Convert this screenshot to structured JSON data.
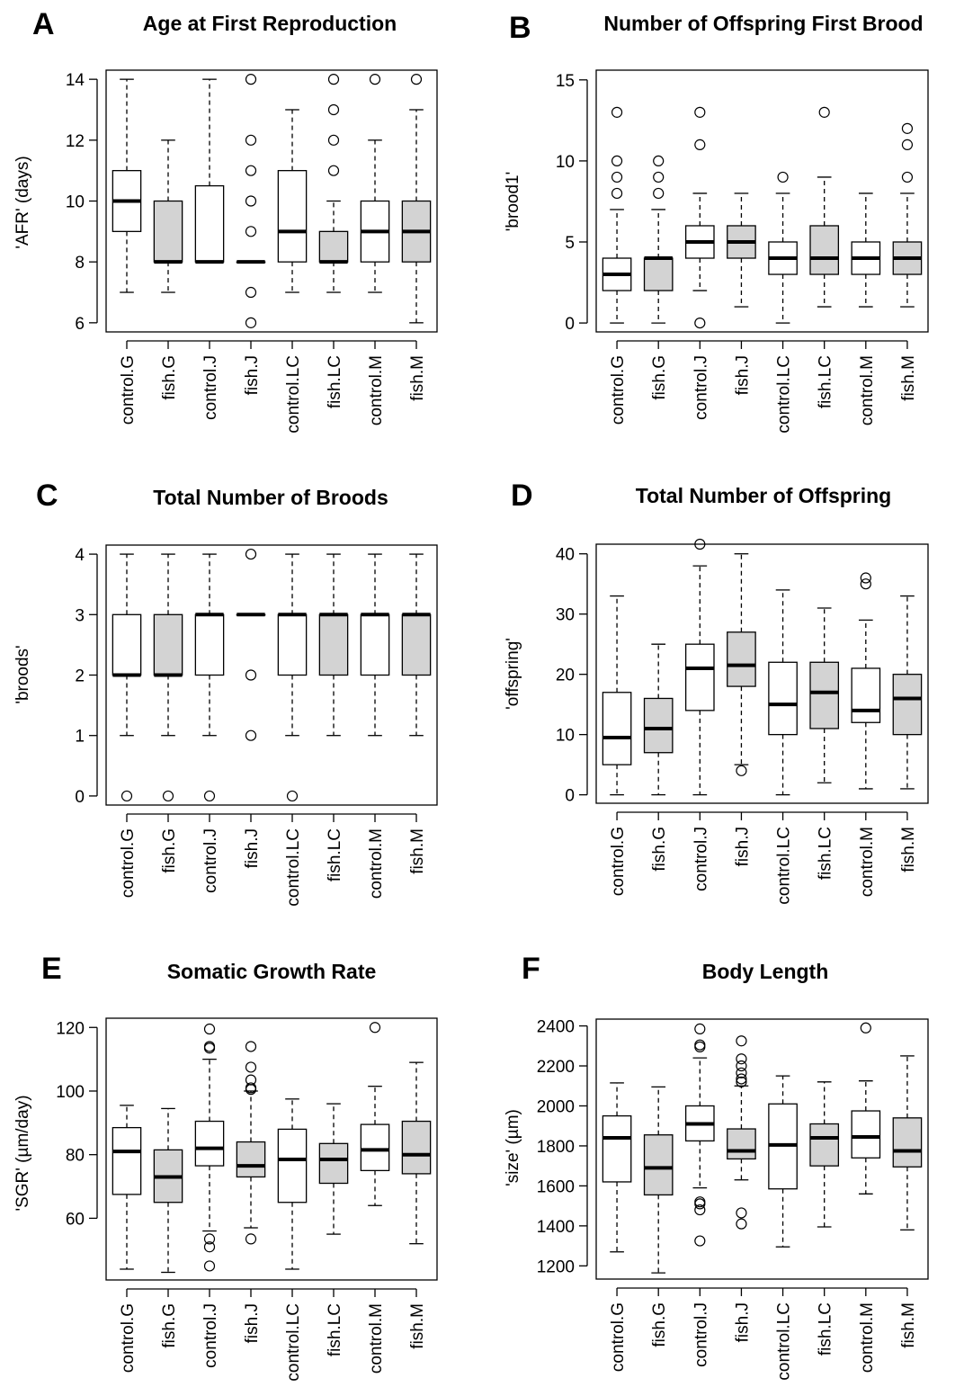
{
  "figure": {
    "background": "#ffffff",
    "filled_color": "#d3d3d3",
    "open_color": "#ffffff"
  },
  "chart_data": [
    {
      "type": "boxplot",
      "letter": "A",
      "title": "Age at First Reproduction",
      "ylabel": "'AFR' (days)",
      "ylim": [
        5.7,
        14.3
      ],
      "yticks": [
        6,
        8,
        10,
        12,
        14
      ],
      "categories": [
        "control.G",
        "fish.G",
        "control.J",
        "fish.J",
        "control.LC",
        "fish.LC",
        "control.M",
        "fish.M"
      ],
      "filled": [
        false,
        true,
        false,
        true,
        false,
        true,
        false,
        true
      ],
      "boxes": [
        {
          "whisker_low": 7,
          "q1": 9,
          "median": 10,
          "q3": 11,
          "whisker_high": 14,
          "outliers": []
        },
        {
          "whisker_low": 7,
          "q1": 8,
          "median": 8,
          "q3": 10,
          "whisker_high": 12,
          "outliers": []
        },
        {
          "whisker_low": 8,
          "q1": 8,
          "median": 8,
          "q3": 10.5,
          "whisker_high": 14,
          "outliers": []
        },
        {
          "whisker_low": 8,
          "q1": 8,
          "median": 8,
          "q3": 8,
          "whisker_high": 8,
          "outliers": [
            6,
            7,
            9,
            10,
            11,
            12,
            14
          ]
        },
        {
          "whisker_low": 7,
          "q1": 8,
          "median": 9,
          "q3": 11,
          "whisker_high": 13,
          "outliers": []
        },
        {
          "whisker_low": 7,
          "q1": 8,
          "median": 8,
          "q3": 9,
          "whisker_high": 10,
          "outliers": [
            11,
            12,
            13,
            14
          ]
        },
        {
          "whisker_low": 7,
          "q1": 8,
          "median": 9,
          "q3": 10,
          "whisker_high": 12,
          "outliers": [
            14
          ]
        },
        {
          "whisker_low": 6,
          "q1": 8,
          "median": 9,
          "q3": 10,
          "whisker_high": 13,
          "outliers": [
            14
          ]
        }
      ]
    },
    {
      "type": "boxplot",
      "letter": "B",
      "title": "Number of Offspring First Brood",
      "ylabel": "'brood1'",
      "ylim": [
        -0.55,
        15.6
      ],
      "yticks": [
        0,
        5,
        10,
        15
      ],
      "categories": [
        "control.G",
        "fish.G",
        "control.J",
        "fish.J",
        "control.LC",
        "fish.LC",
        "control.M",
        "fish.M"
      ],
      "filled": [
        false,
        true,
        false,
        true,
        false,
        true,
        false,
        true
      ],
      "boxes": [
        {
          "whisker_low": 0,
          "q1": 2,
          "median": 3,
          "q3": 4,
          "whisker_high": 7,
          "outliers": [
            8,
            9,
            10,
            13
          ]
        },
        {
          "whisker_low": 0,
          "q1": 2,
          "median": 4,
          "q3": 4,
          "whisker_high": 7,
          "outliers": [
            8,
            9,
            10
          ]
        },
        {
          "whisker_low": 2,
          "q1": 4,
          "median": 5,
          "q3": 6,
          "whisker_high": 8,
          "outliers": [
            0,
            11,
            13
          ]
        },
        {
          "whisker_low": 1,
          "q1": 4,
          "median": 5,
          "q3": 6,
          "whisker_high": 8,
          "outliers": []
        },
        {
          "whisker_low": 0,
          "q1": 3,
          "median": 4,
          "q3": 5,
          "whisker_high": 8,
          "outliers": [
            9
          ]
        },
        {
          "whisker_low": 1,
          "q1": 3,
          "median": 4,
          "q3": 6,
          "whisker_high": 9,
          "outliers": [
            13
          ]
        },
        {
          "whisker_low": 1,
          "q1": 3,
          "median": 4,
          "q3": 5,
          "whisker_high": 8,
          "outliers": []
        },
        {
          "whisker_low": 1,
          "q1": 3,
          "median": 4,
          "q3": 5,
          "whisker_high": 8,
          "outliers": [
            9,
            11,
            12
          ]
        }
      ]
    },
    {
      "type": "boxplot",
      "letter": "C",
      "title": "Total Number of Broods",
      "ylabel": "'broods'",
      "ylim": [
        -0.15,
        4.15
      ],
      "yticks": [
        0,
        1,
        2,
        3,
        4
      ],
      "categories": [
        "control.G",
        "fish.G",
        "control.J",
        "fish.J",
        "control.LC",
        "fish.LC",
        "control.M",
        "fish.M"
      ],
      "filled": [
        false,
        true,
        false,
        true,
        false,
        true,
        false,
        true
      ],
      "boxes": [
        {
          "whisker_low": 1,
          "q1": 2,
          "median": 2,
          "q3": 3,
          "whisker_high": 4,
          "outliers": [
            0
          ]
        },
        {
          "whisker_low": 1,
          "q1": 2,
          "median": 2,
          "q3": 3,
          "whisker_high": 4,
          "outliers": [
            0
          ]
        },
        {
          "whisker_low": 1,
          "q1": 2,
          "median": 3,
          "q3": 3,
          "whisker_high": 4,
          "outliers": [
            0
          ]
        },
        {
          "whisker_low": 3,
          "q1": 3,
          "median": 3,
          "q3": 3,
          "whisker_high": 3,
          "outliers": [
            1,
            2,
            4
          ]
        },
        {
          "whisker_low": 1,
          "q1": 2,
          "median": 3,
          "q3": 3,
          "whisker_high": 4,
          "outliers": [
            0
          ]
        },
        {
          "whisker_low": 1,
          "q1": 2,
          "median": 3,
          "q3": 3,
          "whisker_high": 4,
          "outliers": []
        },
        {
          "whisker_low": 1,
          "q1": 2,
          "median": 3,
          "q3": 3,
          "whisker_high": 4,
          "outliers": []
        },
        {
          "whisker_low": 1,
          "q1": 2,
          "median": 3,
          "q3": 3,
          "whisker_high": 4,
          "outliers": []
        }
      ]
    },
    {
      "type": "boxplot",
      "letter": "D",
      "title": "Total Number of Offspring",
      "ylabel": "'offspring'",
      "ylim": [
        -1.4,
        41.6
      ],
      "yticks": [
        0,
        10,
        20,
        30,
        40
      ],
      "categories": [
        "control.G",
        "fish.G",
        "control.J",
        "fish.J",
        "control.LC",
        "fish.LC",
        "control.M",
        "fish.M"
      ],
      "filled": [
        false,
        true,
        false,
        true,
        false,
        true,
        false,
        true
      ],
      "boxes": [
        {
          "whisker_low": 0,
          "q1": 5,
          "median": 9.5,
          "q3": 17,
          "whisker_high": 33,
          "outliers": []
        },
        {
          "whisker_low": 0,
          "q1": 7,
          "median": 11,
          "q3": 16,
          "whisker_high": 25,
          "outliers": []
        },
        {
          "whisker_low": 0,
          "q1": 14,
          "median": 21,
          "q3": 25,
          "whisker_high": 38,
          "outliers": [
            41.6
          ]
        },
        {
          "whisker_low": 5,
          "q1": 18,
          "median": 21.5,
          "q3": 27,
          "whisker_high": 40,
          "outliers": [
            4
          ]
        },
        {
          "whisker_low": 0,
          "q1": 10,
          "median": 15,
          "q3": 22,
          "whisker_high": 34,
          "outliers": []
        },
        {
          "whisker_low": 2,
          "q1": 11,
          "median": 17,
          "q3": 22,
          "whisker_high": 31,
          "outliers": []
        },
        {
          "whisker_low": 1,
          "q1": 12,
          "median": 14,
          "q3": 21,
          "whisker_high": 29,
          "outliers": [
            35,
            36
          ]
        },
        {
          "whisker_low": 1,
          "q1": 10,
          "median": 16,
          "q3": 20,
          "whisker_high": 33,
          "outliers": []
        }
      ]
    },
    {
      "type": "boxplot",
      "letter": "E",
      "title": "Somatic Growth Rate",
      "ylabel": "'SGR' (µm/day)",
      "ylim": [
        40.6,
        122.9
      ],
      "yticks": [
        60,
        80,
        100,
        120
      ],
      "categories": [
        "control.G",
        "fish.G",
        "control.J",
        "fish.J",
        "control.LC",
        "fish.LC",
        "control.M",
        "fish.M"
      ],
      "filled": [
        false,
        true,
        false,
        true,
        false,
        true,
        false,
        true
      ],
      "boxes": [
        {
          "whisker_low": 44,
          "q1": 67.5,
          "median": 81,
          "q3": 88.5,
          "whisker_high": 95.5,
          "outliers": []
        },
        {
          "whisker_low": 43,
          "q1": 65,
          "median": 73,
          "q3": 81.5,
          "whisker_high": 94.5,
          "outliers": []
        },
        {
          "whisker_low": 56,
          "q1": 76.5,
          "median": 82,
          "q3": 90.5,
          "whisker_high": 110,
          "outliers": [
            45,
            51,
            53.5,
            113.5,
            114,
            119.5
          ]
        },
        {
          "whisker_low": 57,
          "q1": 73,
          "median": 76.5,
          "q3": 84,
          "whisker_high": 100,
          "outliers": [
            53.5,
            100.5,
            101,
            103.5,
            107.5,
            114
          ]
        },
        {
          "whisker_low": 44,
          "q1": 65,
          "median": 78.5,
          "q3": 88,
          "whisker_high": 97.5,
          "outliers": []
        },
        {
          "whisker_low": 55,
          "q1": 71,
          "median": 78.5,
          "q3": 83.5,
          "whisker_high": 96,
          "outliers": []
        },
        {
          "whisker_low": 64,
          "q1": 75,
          "median": 81.5,
          "q3": 89.5,
          "whisker_high": 101.5,
          "outliers": [
            120
          ]
        },
        {
          "whisker_low": 52,
          "q1": 74,
          "median": 80,
          "q3": 90.5,
          "whisker_high": 109,
          "outliers": []
        }
      ]
    },
    {
      "type": "boxplot",
      "letter": "F",
      "title": "Body Length",
      "ylabel": "'size' (µm)",
      "ylim": [
        1134,
        2434
      ],
      "yticks": [
        1200,
        1400,
        1600,
        1800,
        2000,
        2200,
        2400
      ],
      "categories": [
        "control.G",
        "fish.G",
        "control.J",
        "fish.J",
        "control.LC",
        "fish.LC",
        "control.M",
        "fish.M"
      ],
      "filled": [
        false,
        true,
        false,
        true,
        false,
        true,
        false,
        true
      ],
      "boxes": [
        {
          "whisker_low": 1270,
          "q1": 1620,
          "median": 1840,
          "q3": 1950,
          "whisker_high": 2115,
          "outliers": []
        },
        {
          "whisker_low": 1165,
          "q1": 1555,
          "median": 1690,
          "q3": 1855,
          "whisker_high": 2095,
          "outliers": []
        },
        {
          "whisker_low": 1590,
          "q1": 1825,
          "median": 1910,
          "q3": 2000,
          "whisker_high": 2240,
          "outliers": [
            1325,
            1480,
            1510,
            1520,
            2295,
            2305,
            2385
          ]
        },
        {
          "whisker_low": 1630,
          "q1": 1735,
          "median": 1775,
          "q3": 1885,
          "whisker_high": 2100,
          "outliers": [
            1410,
            1465,
            2120,
            2135,
            2165,
            2200,
            2235,
            2325
          ]
        },
        {
          "whisker_low": 1295,
          "q1": 1585,
          "median": 1805,
          "q3": 2010,
          "whisker_high": 2150,
          "outliers": []
        },
        {
          "whisker_low": 1395,
          "q1": 1700,
          "median": 1840,
          "q3": 1910,
          "whisker_high": 2120,
          "outliers": []
        },
        {
          "whisker_low": 1560,
          "q1": 1740,
          "median": 1845,
          "q3": 1975,
          "whisker_high": 2125,
          "outliers": [
            2390
          ]
        },
        {
          "whisker_low": 1380,
          "q1": 1695,
          "median": 1775,
          "q3": 1940,
          "whisker_high": 2250,
          "outliers": []
        }
      ]
    }
  ]
}
